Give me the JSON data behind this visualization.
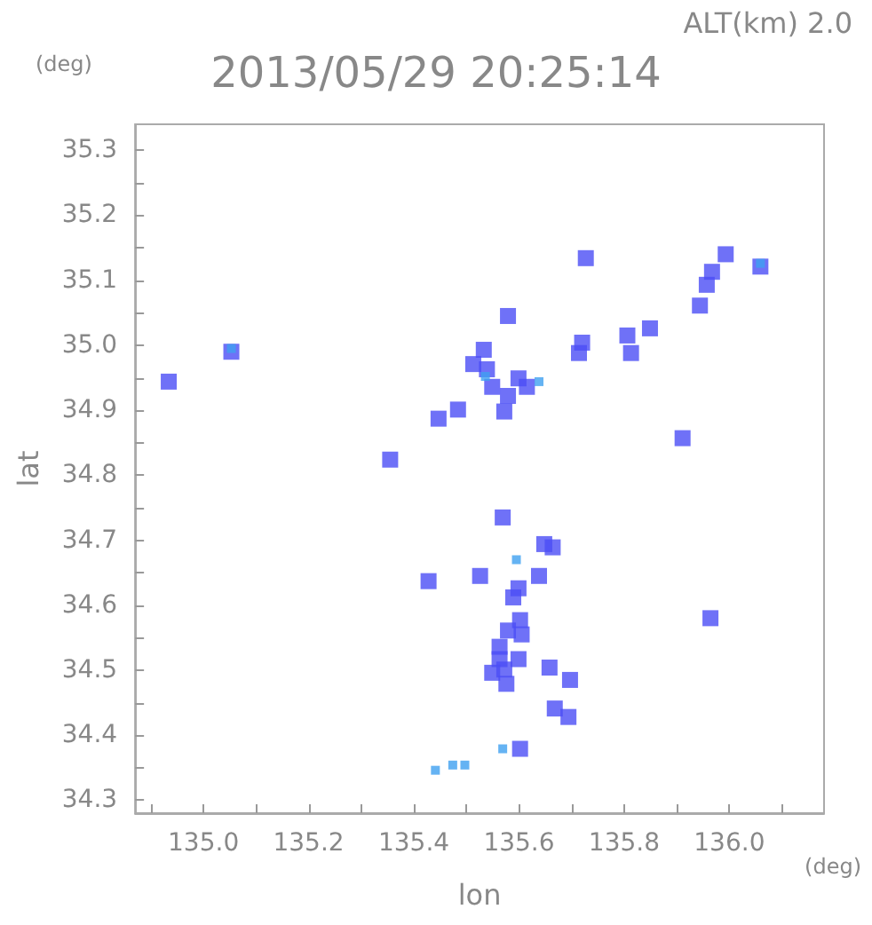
{
  "chart_data": {
    "type": "scatter",
    "title": "2013/05/29 20:25:14",
    "subtitle": "ALT(km) 2.0",
    "xlabel": "lon",
    "ylabel": "lat",
    "annotations": [
      "(deg)",
      "(deg)"
    ],
    "xlim": [
      134.87,
      136.18
    ],
    "ylim": [
      34.28,
      35.34
    ],
    "xticks": [
      {
        "value": 134.9,
        "label": null
      },
      {
        "value": 135,
        "label": "135.0"
      },
      {
        "value": 135.1,
        "label": null
      },
      135.2,
      {
        "value": 135.3,
        "label": null
      },
      135.4,
      {
        "value": 135.5,
        "label": null
      },
      135.6,
      {
        "value": 135.7,
        "label": null
      },
      135.8,
      {
        "value": 135.9,
        "label": null
      },
      {
        "value": 136,
        "label": "136.0"
      },
      {
        "value": 136.1,
        "label": null
      }
    ],
    "yticks": [
      34.3,
      {
        "value": 34.35,
        "label": null
      },
      34.4,
      {
        "value": 34.45,
        "label": null
      },
      34.5,
      {
        "value": 34.55,
        "label": null
      },
      34.6,
      {
        "value": 34.65,
        "label": null
      },
      34.7,
      {
        "value": 34.75,
        "label": null
      },
      34.8,
      {
        "value": 34.85,
        "label": null
      },
      34.9,
      {
        "value": 34.95,
        "label": null
      },
      {
        "value": 35,
        "label": "35.0"
      },
      {
        "value": 35.05,
        "label": null
      },
      35.1,
      {
        "value": 35.15,
        "label": null
      },
      35.2,
      {
        "value": 35.25,
        "label": null
      },
      35.3
    ],
    "grid": false,
    "marker": "square",
    "series": [
      {
        "color": "#4b4ef5",
        "x": [
          134.934,
          135.053,
          135.355,
          135.447,
          135.484,
          135.513,
          135.533,
          135.539,
          135.549,
          135.579,
          135.599,
          135.615,
          135.572,
          135.579,
          135.727,
          135.72,
          135.714,
          135.806,
          135.813,
          135.849,
          135.967,
          135.957,
          135.993,
          135.944,
          136.059,
          135.911,
          135.964,
          135.569,
          135.428,
          135.526,
          135.599,
          135.589,
          135.664,
          135.648,
          135.638,
          135.602,
          135.579,
          135.605,
          135.563,
          135.563,
          135.599,
          135.572,
          135.549,
          135.576,
          135.658,
          135.697,
          135.668,
          135.694,
          135.602
        ],
        "values": [
          34.944,
          34.99,
          34.824,
          34.887,
          34.901,
          34.971,
          34.993,
          34.963,
          34.936,
          34.922,
          34.949,
          34.936,
          34.898,
          35.045,
          35.134,
          35.004,
          34.988,
          35.015,
          34.988,
          35.026,
          35.113,
          35.093,
          35.14,
          35.061,
          35.121,
          34.857,
          34.58,
          34.735,
          34.637,
          34.645,
          34.626,
          34.612,
          34.689,
          34.694,
          34.645,
          34.577,
          34.561,
          34.555,
          34.536,
          34.517,
          34.517,
          34.501,
          34.496,
          34.479,
          34.504,
          34.485,
          34.441,
          34.428,
          34.379
        ]
      },
      {
        "color": "#3fa0f0",
        "x": [
          135.053,
          135.536,
          135.638,
          136.059,
          135.595,
          135.569,
          135.441,
          135.474,
          135.497
        ],
        "values": [
          34.995,
          34.952,
          34.944,
          35.126,
          34.67,
          34.379,
          34.346,
          34.354,
          34.354
        ]
      }
    ]
  }
}
